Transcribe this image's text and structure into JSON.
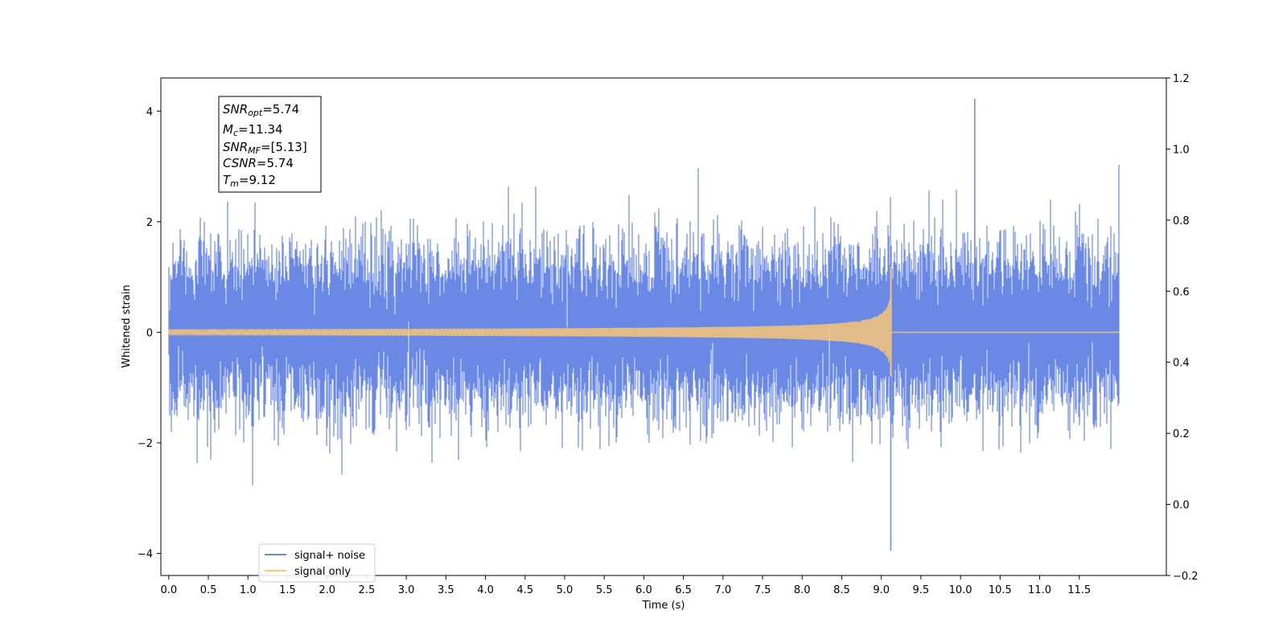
{
  "chart_data": {
    "type": "line",
    "xlabel": "Time (s)",
    "ylabel": "Whitened strain",
    "xlim": [
      -0.1,
      12.6
    ],
    "ylim": [
      -4.4,
      4.6
    ],
    "ylim_right": [
      -0.2,
      1.2
    ],
    "x_ticks": [
      0.0,
      0.5,
      1.0,
      1.5,
      2.0,
      2.5,
      3.0,
      3.5,
      4.0,
      4.5,
      5.0,
      5.5,
      6.0,
      6.5,
      7.0,
      7.5,
      8.0,
      8.5,
      9.0,
      9.5,
      10.0,
      10.5,
      11.0,
      11.5
    ],
    "x_tick_labels": [
      "0.0",
      "0.5",
      "1.0",
      "1.5",
      "2.0",
      "2.5",
      "3.0",
      "3.5",
      "4.0",
      "4.5",
      "5.0",
      "5.5",
      "6.0",
      "6.5",
      "7.0",
      "7.5",
      "8.0",
      "8.5",
      "9.0",
      "9.5",
      "10.0",
      "10.5",
      "11.0",
      "11.5"
    ],
    "y_ticks": [
      -4,
      -2,
      0,
      2,
      4
    ],
    "y_tick_labels": [
      "−4",
      "−2",
      "0",
      "2",
      "4"
    ],
    "y_right_ticks": [
      -0.2,
      0.0,
      0.2,
      0.4,
      0.6,
      0.8,
      1.0,
      1.2
    ],
    "y_right_tick_labels": [
      "−0.2",
      "0.0",
      "0.2",
      "0.4",
      "0.6",
      "0.8",
      "1.0",
      "1.2"
    ],
    "grid": false,
    "legend_placement": "lower-left",
    "series": [
      {
        "name": "signal+ noise",
        "color": "#6a89e5",
        "description_values": {
          "x_start": 0.0,
          "x_end": 12.0,
          "typical_envelope": [
            -1.8,
            2.2
          ],
          "max": 4.22,
          "max_at": 10.18,
          "min": -3.95,
          "min_at": 9.12
        }
      },
      {
        "name": "signal only",
        "color": "#ffc870",
        "description_values": {
          "x_start": 0.0,
          "x_end": 12.0,
          "merger_time": 9.12,
          "peak_max": 1.18,
          "peak_min": -0.8,
          "early_amplitude": 0.02
        }
      }
    ],
    "annotation": {
      "snr_opt": {
        "main": "SNR",
        "sub": "opt",
        "value": "=5.74"
      },
      "mc": {
        "main": "M",
        "sub": "c",
        "value": "=11.34"
      },
      "snr_mf": {
        "main": "SNR",
        "sub": "MF",
        "value": "=[5.13]"
      },
      "csnr": {
        "main": "CSNR",
        "value": "=5.74"
      },
      "tm": {
        "main": "T",
        "sub": "m",
        "value": "=9.12"
      }
    }
  }
}
